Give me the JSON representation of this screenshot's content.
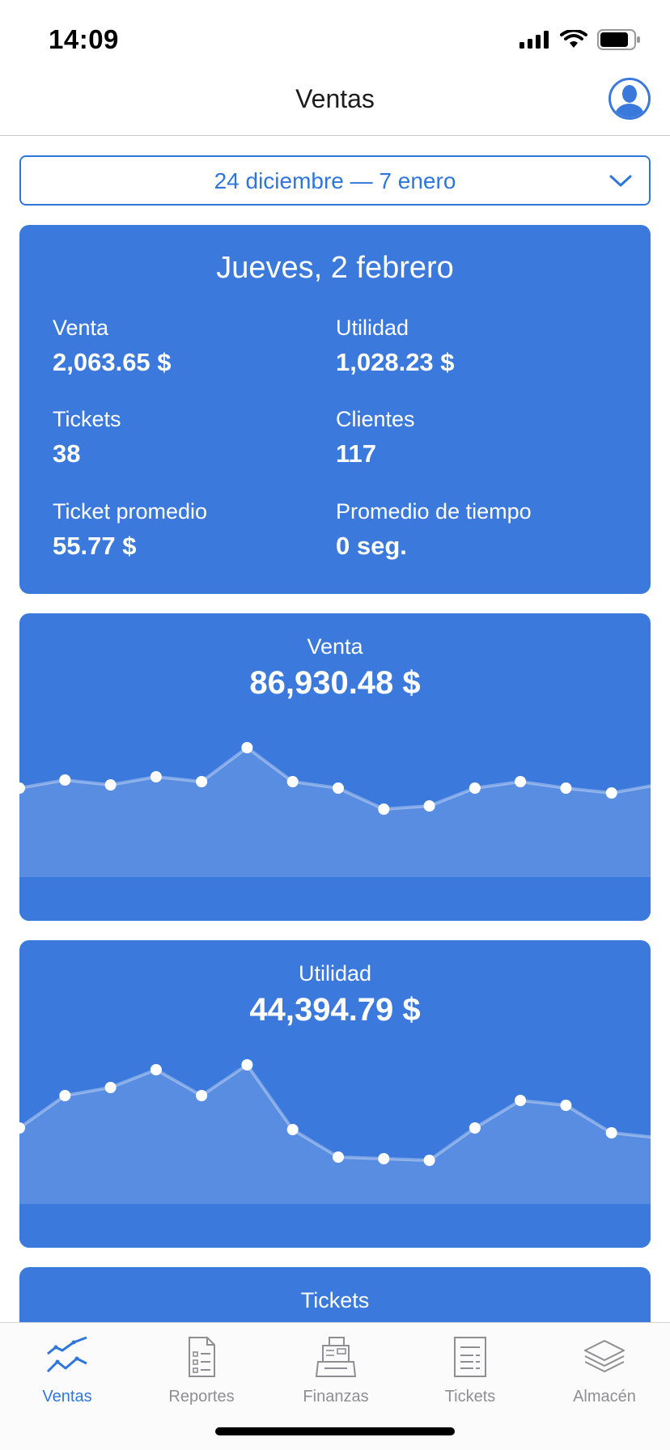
{
  "status_bar": {
    "time": "14:09"
  },
  "nav": {
    "title": "Ventas"
  },
  "date_picker": {
    "label": "24 diciembre — 7 enero"
  },
  "summary": {
    "title": "Jueves, 2 febrero",
    "stats": [
      {
        "label": "Venta",
        "value": "2,063.65 $"
      },
      {
        "label": "Utilidad",
        "value": "1,028.23 $"
      },
      {
        "label": "Tickets",
        "value": "38"
      },
      {
        "label": "Clientes",
        "value": "117"
      },
      {
        "label": "Ticket promedio",
        "value": "55.77 $"
      },
      {
        "label": "Promedio de tiempo",
        "value": "0 seg."
      }
    ]
  },
  "charts": [
    {
      "title": "Venta",
      "value": "86,930.48 $"
    },
    {
      "title": "Utilidad",
      "value": "44,394.79 $"
    },
    {
      "title": "Tickets"
    }
  ],
  "chart_data": [
    {
      "type": "area",
      "title": "Venta",
      "values": [
        52,
        57,
        54,
        59,
        56,
        77,
        56,
        52,
        39,
        41,
        52,
        56,
        52,
        49,
        54
      ]
    },
    {
      "type": "area",
      "title": "Utilidad",
      "values": [
        44,
        64,
        69,
        80,
        64,
        83,
        43,
        26,
        25,
        24,
        44,
        61,
        58,
        41,
        38
      ]
    }
  ],
  "tabs": [
    {
      "label": "Ventas",
      "icon": "sales-chart-icon",
      "active": true
    },
    {
      "label": "Reportes",
      "icon": "report-document-icon",
      "active": false
    },
    {
      "label": "Finanzas",
      "icon": "cash-register-icon",
      "active": false
    },
    {
      "label": "Tickets",
      "icon": "ticket-receipt-icon",
      "active": false
    },
    {
      "label": "Almacén",
      "icon": "warehouse-layers-icon",
      "active": false
    }
  ],
  "colors": {
    "accent": "#2f76dc",
    "card": "#3b79dc",
    "tab_inactive": "#8e8e93"
  }
}
